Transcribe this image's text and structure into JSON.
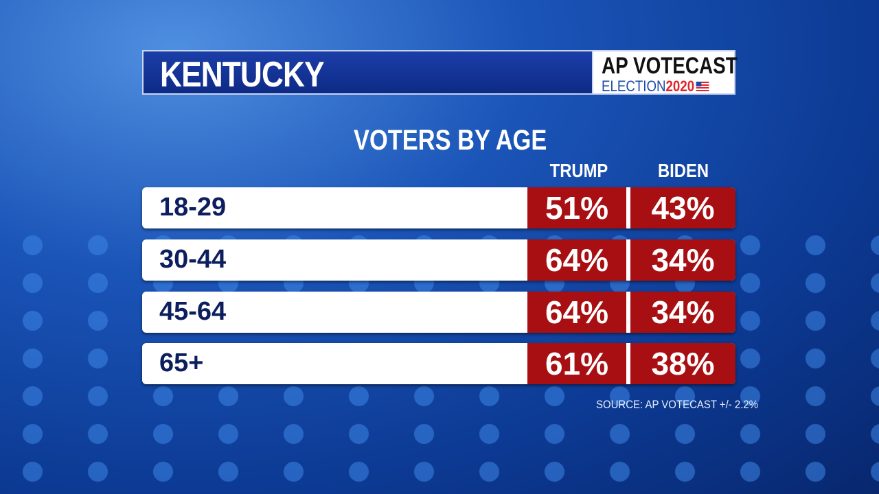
{
  "header": {
    "title": "KENTUCKY",
    "logo_line1": "AP VOTECAST",
    "logo_election": "ELECTION",
    "logo_year": "2020"
  },
  "chart_data": {
    "type": "table",
    "title": "VOTERS BY AGE",
    "columns": [
      "TRUMP",
      "BIDEN"
    ],
    "rows": [
      {
        "label": "18-29",
        "values": [
          "51%",
          "43%"
        ]
      },
      {
        "label": "30-44",
        "values": [
          "64%",
          "34%"
        ]
      },
      {
        "label": "45-64",
        "values": [
          "64%",
          "34%"
        ]
      },
      {
        "label": "65+",
        "values": [
          "61%",
          "38%"
        ]
      }
    ],
    "source": "SOURCE: AP VOTECAST +/- 2.2%"
  },
  "colors": {
    "cell": "#a80f12",
    "label": "#0c1e5e",
    "background": "#0c3a94"
  }
}
